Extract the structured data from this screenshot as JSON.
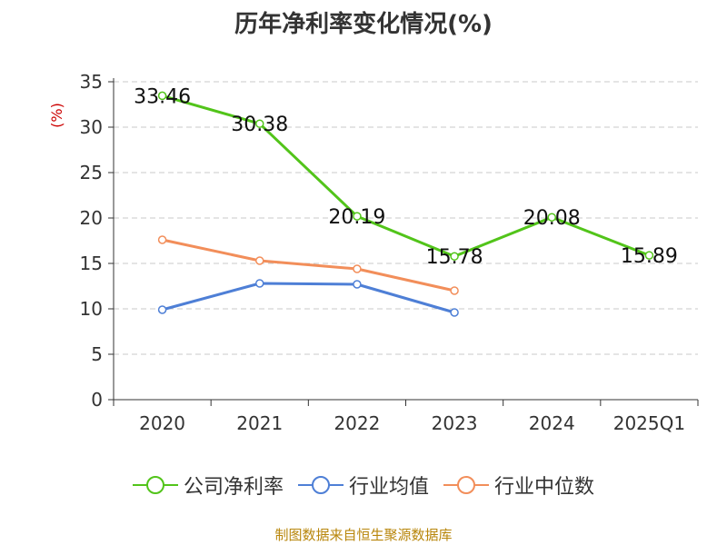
{
  "title": "历年净利率变化情况(%)",
  "source": "制图数据来自恒生聚源数据库",
  "chart_data": {
    "type": "line",
    "title": "历年净利率变化情况(%)",
    "ylabel": "(%)",
    "categories": [
      "2020",
      "2021",
      "2022",
      "2023",
      "2024",
      "2025Q1"
    ],
    "ylim": [
      0,
      35
    ],
    "yticks": [
      0,
      5,
      10,
      15,
      20,
      25,
      30,
      35
    ],
    "grid": true,
    "legend_position": "bottom",
    "series": [
      {
        "name": "公司净利率",
        "color": "#52c41a",
        "values": [
          33.46,
          30.38,
          20.19,
          15.78,
          20.08,
          15.89
        ],
        "labels": [
          "33.46",
          "30.38",
          "20.19",
          "15.78",
          "20.08",
          "15.89"
        ]
      },
      {
        "name": "行业均值",
        "color": "#4e7fd6",
        "values": [
          9.9,
          12.8,
          12.7,
          9.6,
          null,
          null
        ]
      },
      {
        "name": "行业中位数",
        "color": "#f28e5a",
        "values": [
          17.6,
          15.3,
          14.4,
          12.0,
          null,
          null
        ]
      }
    ]
  }
}
